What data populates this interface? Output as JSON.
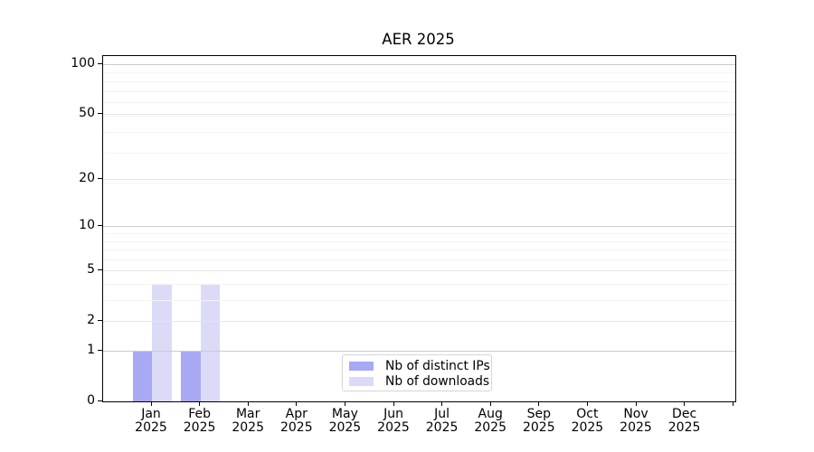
{
  "chart_data": {
    "type": "bar",
    "title": "AER 2025",
    "x": {
      "months": [
        "Jan",
        "Feb",
        "Mar",
        "Apr",
        "May",
        "Jun",
        "Jul",
        "Aug",
        "Sep",
        "Oct",
        "Nov",
        "Dec"
      ],
      "year": "2025"
    },
    "series": [
      {
        "name": "Nb of distinct IPs",
        "color": "#a8a8f5",
        "values": [
          1,
          1,
          0,
          0,
          0,
          0,
          0,
          0,
          0,
          0,
          0,
          0
        ]
      },
      {
        "name": "Nb of downloads",
        "color": "#dbdbf8",
        "values": [
          4,
          4,
          0,
          0,
          0,
          0,
          0,
          0,
          0,
          0,
          0,
          0
        ]
      }
    ],
    "yscale": "log10(value+1)",
    "y_ticks": [
      0,
      1,
      2,
      5,
      10,
      20,
      50,
      100
    ],
    "ylim": [
      0,
      112
    ],
    "grid": true,
    "grid_values": {
      "strong": [
        1,
        10,
        100
      ],
      "labeled": [
        2,
        5,
        20,
        50
      ],
      "minor": [
        3,
        4,
        6,
        7,
        8,
        9,
        19,
        29,
        39,
        49,
        59,
        69,
        79,
        89
      ]
    },
    "legend_position": "lower center"
  },
  "colors": {
    "grid_strong": "#cbcbcb",
    "grid_labeled": "#e7e7e7",
    "grid_minor": "#f4f4f4",
    "spine": "#000000",
    "text": "#000000"
  }
}
